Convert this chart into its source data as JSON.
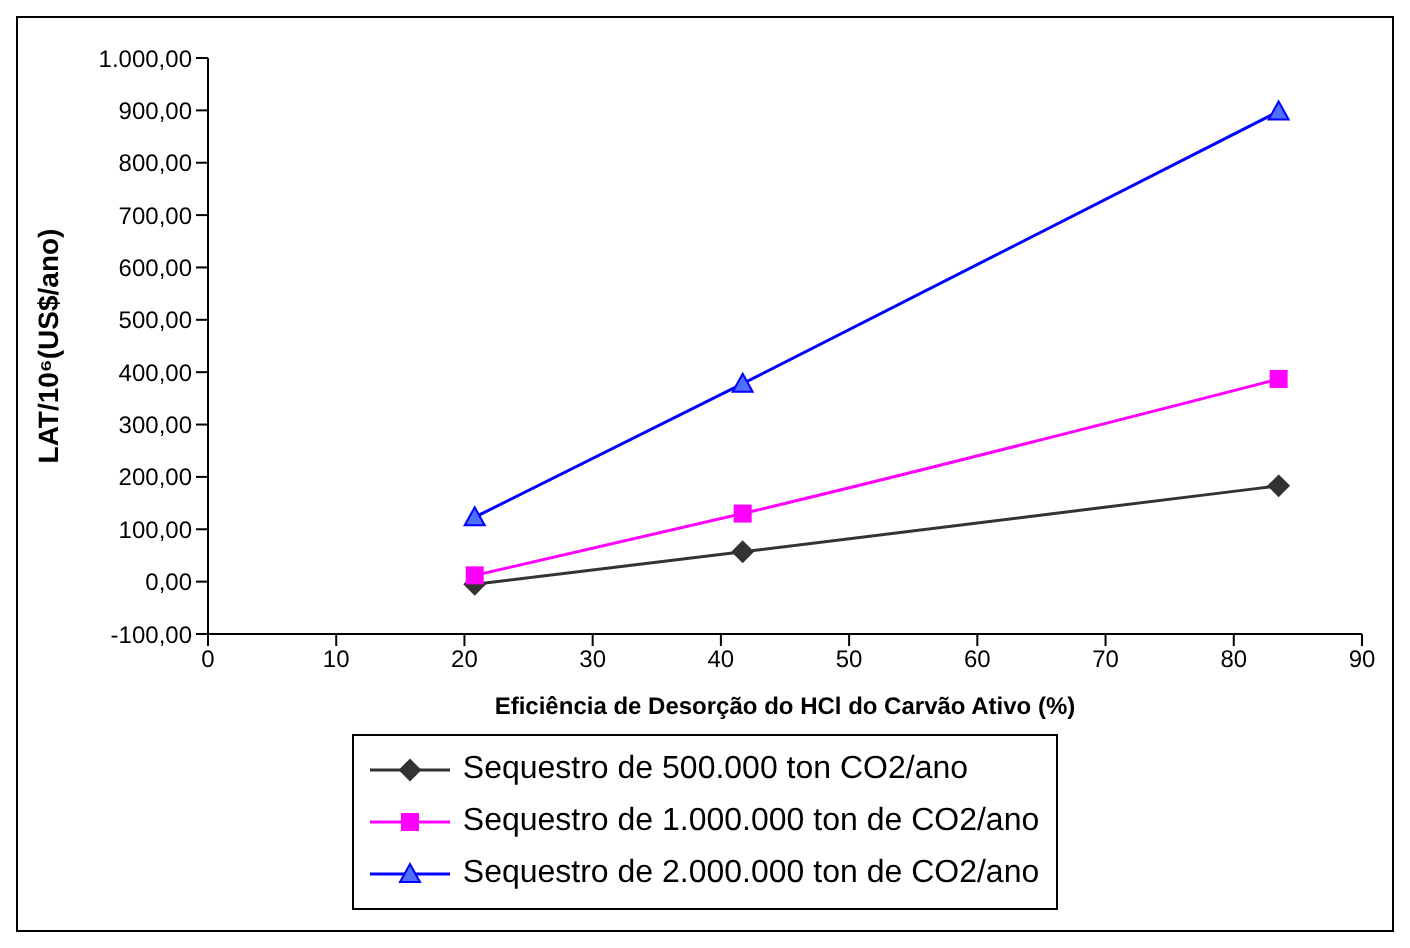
{
  "chart_data": {
    "type": "line",
    "xlabel": "Eficiência de Desorção do HCl do Carvão Ativo (%)",
    "ylabel": "LAT/10⁶(US$/ano)",
    "x": [
      20.8,
      41.7,
      83.5
    ],
    "series": [
      {
        "name": "Sequestro de 500.000 ton CO2/ano",
        "color": "#333333",
        "marker": "diamond",
        "values": [
          -5,
          57,
          183
        ]
      },
      {
        "name": "Sequestro de 1.000.000 ton de CO2/ano",
        "color": "#ff00ff",
        "marker": "square",
        "values": [
          12,
          130,
          387
        ]
      },
      {
        "name": "Sequestro de 2.000.000 ton de CO2/ano",
        "color": "#0000ff",
        "marker": "triangle",
        "values": [
          123,
          378,
          898
        ]
      }
    ],
    "xlim": [
      0,
      90
    ],
    "xticks": [
      0,
      10,
      20,
      30,
      40,
      50,
      60,
      70,
      80,
      90
    ],
    "ylim": [
      -100,
      1000
    ],
    "yticks": [
      {
        "value": -100,
        "label": "-100,00"
      },
      {
        "value": 0,
        "label": "0,00"
      },
      {
        "value": 100,
        "label": "100,00"
      },
      {
        "value": 200,
        "label": "200,00"
      },
      {
        "value": 300,
        "label": "300,00"
      },
      {
        "value": 400,
        "label": "400,00"
      },
      {
        "value": 500,
        "label": "500,00"
      },
      {
        "value": 600,
        "label": "600,00"
      },
      {
        "value": 700,
        "label": "700,00"
      },
      {
        "value": 800,
        "label": "800,00"
      },
      {
        "value": 900,
        "label": "900,00"
      },
      {
        "value": 1000,
        "label": "1.000,00"
      }
    ],
    "legend": "bottom",
    "line_style": "solid"
  }
}
